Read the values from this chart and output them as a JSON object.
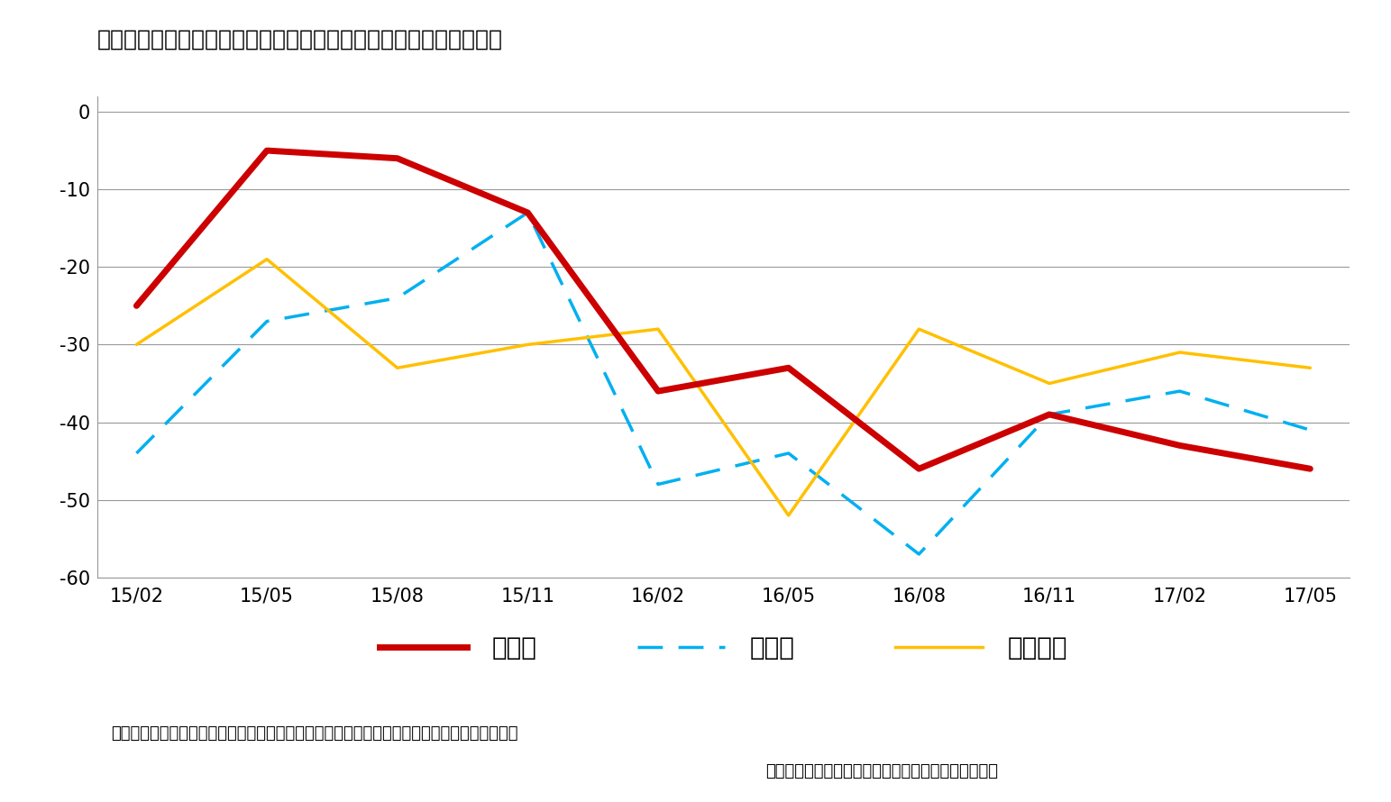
{
  "title": "図表　市場参加者による債券市場の機能度等に対する理解（ＤＩ）",
  "x_labels": [
    "15/02",
    "15/05",
    "15/08",
    "15/11",
    "16/02",
    "16/05",
    "16/08",
    "16/11",
    "17/02",
    "17/05"
  ],
  "kinodo": [
    -25,
    -5,
    -6,
    -13,
    -36,
    -33,
    -46,
    -39,
    -43,
    -46
  ],
  "chumonsyo": [
    -44,
    -27,
    -24,
    -13,
    -48,
    -44,
    -57,
    -39,
    -36,
    -41
  ],
  "torihikihinido": [
    -30,
    -19,
    -33,
    -30,
    -28,
    -52,
    -28,
    -35,
    -31,
    -33
  ],
  "kinodo_color": "#cc0000",
  "chumonsyo_color": "#00b0f0",
  "torihikihinido_color": "#ffc000",
  "ylim": [
    -60,
    2
  ],
  "yticks": [
    0,
    -10,
    -20,
    -30,
    -40,
    -50,
    -60
  ],
  "legend_kinodo": "機能度",
  "legend_chumonsyo": "注文量",
  "legend_torihiki": "取引頻度",
  "note_line1": "注）機能度（高い　－　低い）　注文量（多い　－　少ない）　取引頻度（増加　－　減少）",
  "note_line2": "出所：日本銀行「債券市場サーベイ」を基に筆者作成",
  "background_color": "#ffffff",
  "grid_color": "#999999"
}
